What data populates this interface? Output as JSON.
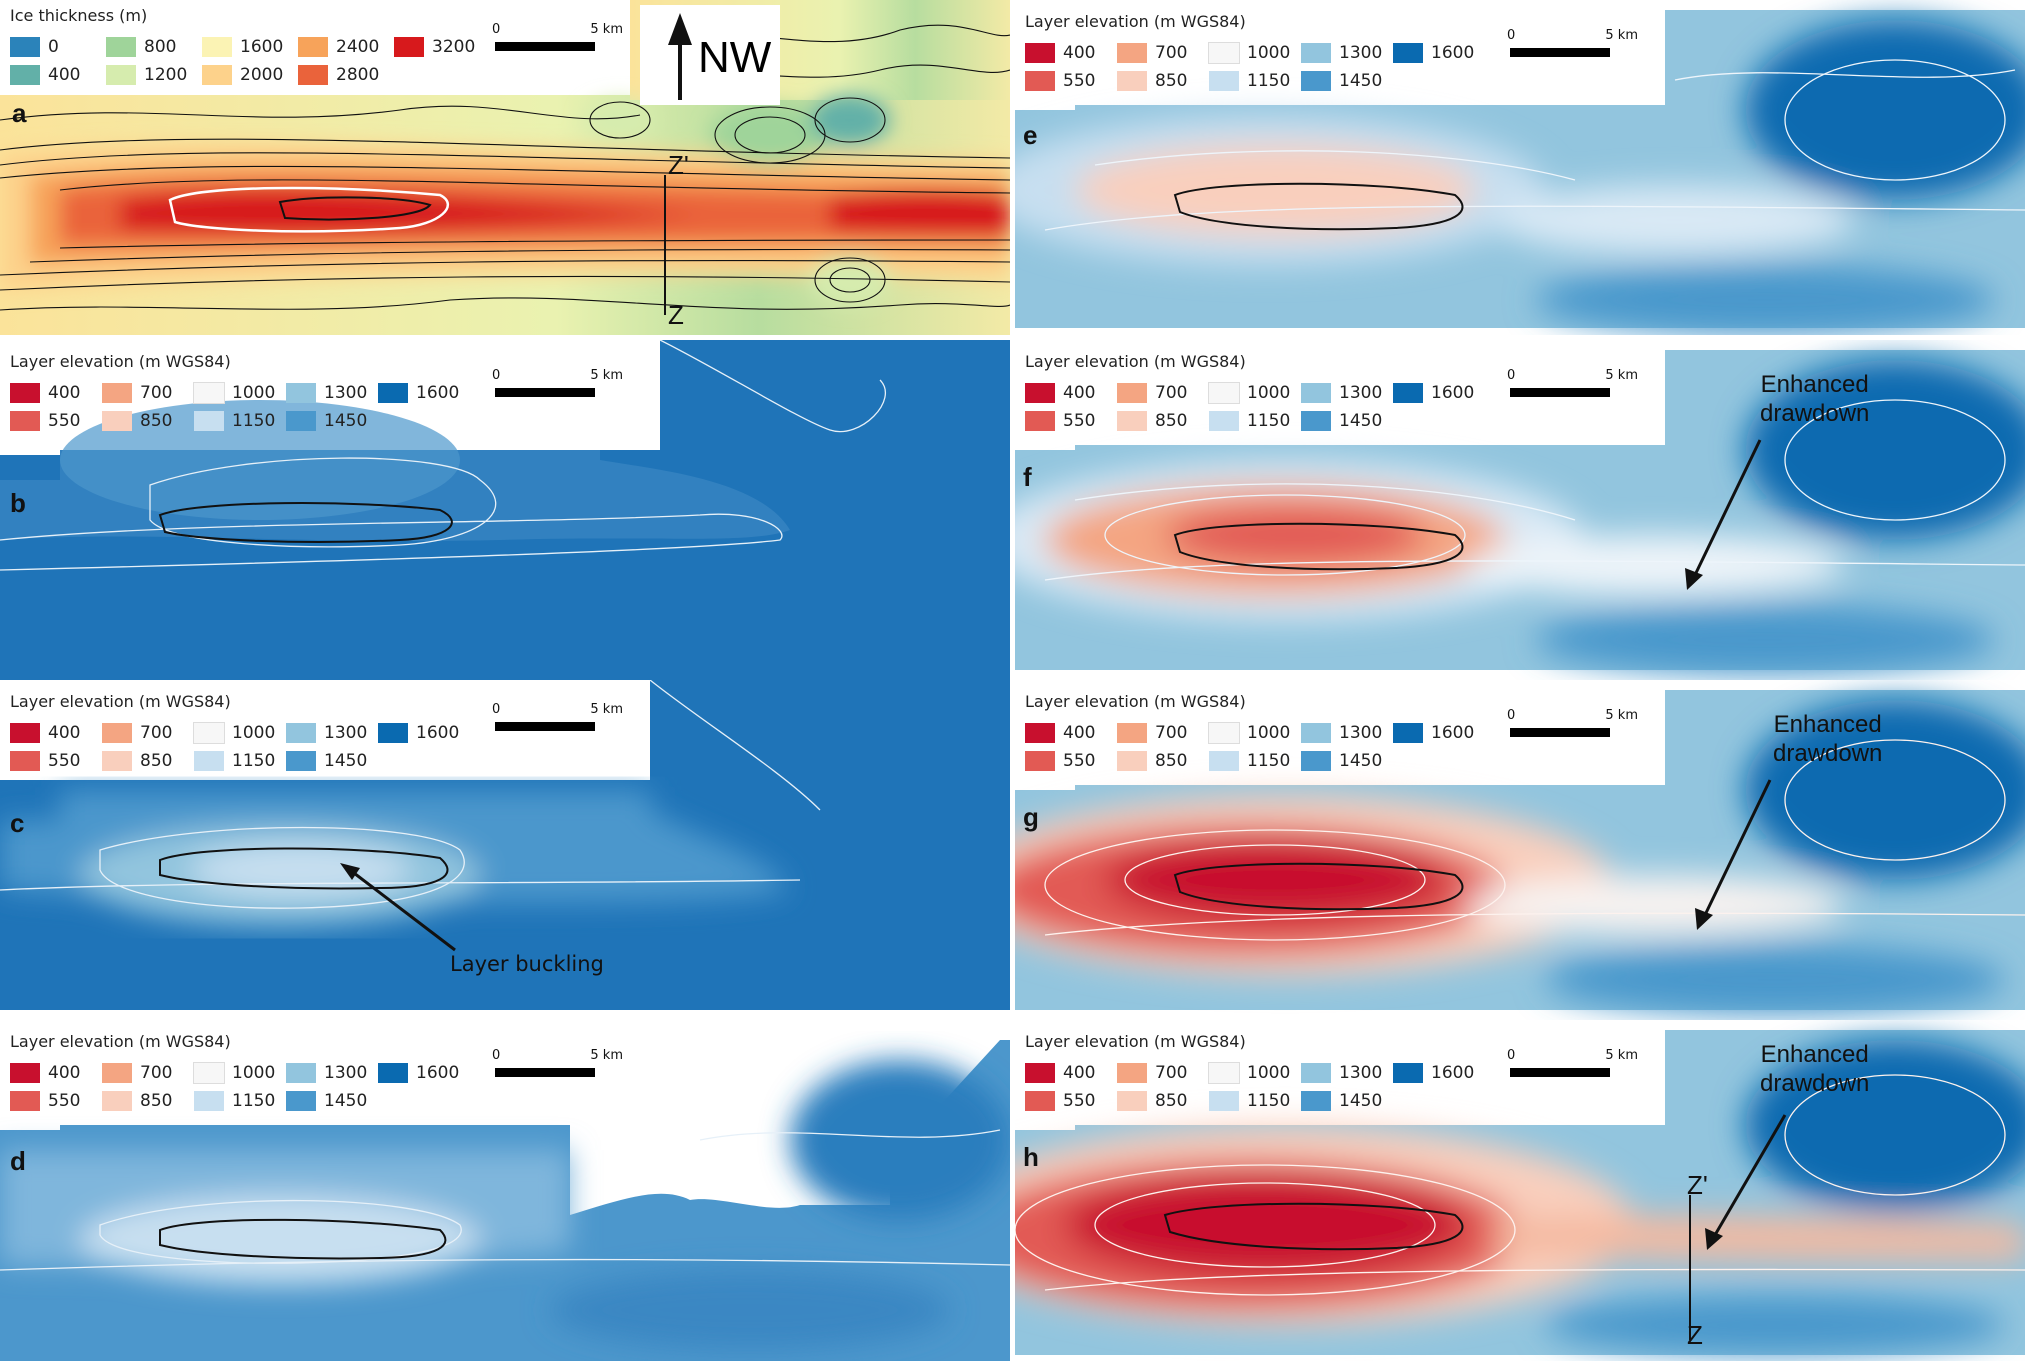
{
  "north_arrow": {
    "label": "NW"
  },
  "scale_bar": {
    "start": "0",
    "end": "5 km"
  },
  "ice_legend": {
    "title": "Ice thickness (m)",
    "items": [
      {
        "label": "0",
        "color": "#2b83ba"
      },
      {
        "label": "800",
        "color": "#9fd49a"
      },
      {
        "label": "1600",
        "color": "#fbf3b4"
      },
      {
        "label": "2400",
        "color": "#f7a35a"
      },
      {
        "label": "3200",
        "color": "#d7191c"
      },
      {
        "label": "400",
        "color": "#62b0a8"
      },
      {
        "label": "1200",
        "color": "#d6ecae"
      },
      {
        "label": "2000",
        "color": "#fdd28b"
      },
      {
        "label": "2800",
        "color": "#ea633b"
      }
    ]
  },
  "layer_legend": {
    "title": "Layer elevation (m WGS84)",
    "items": [
      {
        "label": "400",
        "color": "#c8102e"
      },
      {
        "label": "700",
        "color": "#f4a582"
      },
      {
        "label": "1000",
        "color": "#f7f7f7"
      },
      {
        "label": "1300",
        "color": "#92c5de"
      },
      {
        "label": "1600",
        "color": "#0a6ab0"
      },
      {
        "label": "550",
        "color": "#e25a54"
      },
      {
        "label": "850",
        "color": "#f9cfbd"
      },
      {
        "label": "1150",
        "color": "#c7dff0"
      },
      {
        "label": "1450",
        "color": "#4a98cc"
      }
    ]
  },
  "panels": [
    {
      "letter": "a"
    },
    {
      "letter": "b"
    },
    {
      "letter": "c"
    },
    {
      "letter": "d"
    },
    {
      "letter": "e"
    },
    {
      "letter": "f"
    },
    {
      "letter": "g"
    },
    {
      "letter": "h"
    }
  ],
  "annotations": {
    "layer_buckling": "Layer buckling",
    "enhanced_drawdown_line1": "Enhanced",
    "enhanced_drawdown_line2": "drawdown"
  },
  "profile": {
    "start": "Z",
    "end": "Z'"
  }
}
